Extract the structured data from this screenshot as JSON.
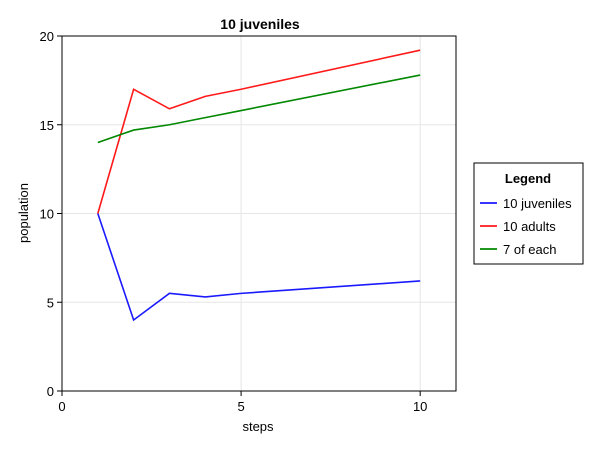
{
  "chart_data": {
    "type": "line",
    "title": "10 juveniles",
    "xlabel": "steps",
    "ylabel": "population",
    "xlim": [
      0,
      11
    ],
    "ylim": [
      0,
      20
    ],
    "xticks": [
      0,
      5,
      10
    ],
    "yticks": [
      0,
      5,
      10,
      15,
      20
    ],
    "grid": true,
    "legend": {
      "title": "Legend",
      "placement": "right"
    },
    "series": [
      {
        "name": "10 juveniles",
        "color": "#1a1aff",
        "x": [
          1,
          2,
          3,
          4,
          5,
          10
        ],
        "y": [
          10,
          4,
          5.5,
          5.3,
          5.5,
          6.2
        ]
      },
      {
        "name": "10 adults",
        "color": "#ff1a1a",
        "x": [
          1,
          2,
          3,
          4,
          5,
          10
        ],
        "y": [
          10,
          17,
          15.9,
          16.6,
          17,
          19.2
        ]
      },
      {
        "name": "7 of each",
        "color": "#008800",
        "x": [
          1,
          2,
          3,
          4,
          5,
          10
        ],
        "y": [
          14,
          14.7,
          15,
          15.4,
          15.8,
          17.8
        ]
      }
    ]
  }
}
